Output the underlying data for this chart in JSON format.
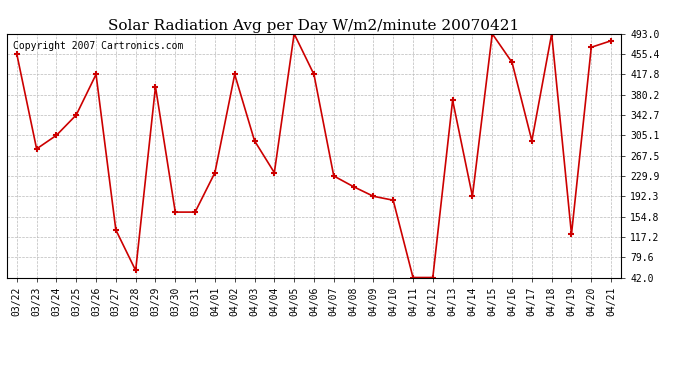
{
  "title": "Solar Radiation Avg per Day W/m2/minute 20070421",
  "copyright": "Copyright 2007 Cartronics.com",
  "labels": [
    "03/22",
    "03/23",
    "03/24",
    "03/25",
    "03/26",
    "03/27",
    "03/28",
    "03/29",
    "03/30",
    "03/31",
    "04/01",
    "04/02",
    "04/03",
    "04/04",
    "04/05",
    "04/06",
    "04/07",
    "04/08",
    "04/09",
    "04/10",
    "04/11",
    "04/12",
    "04/13",
    "04/14",
    "04/15",
    "04/16",
    "04/17",
    "04/18",
    "04/19",
    "04/20",
    "04/21"
  ],
  "values": [
    455.4,
    280.0,
    305.1,
    342.7,
    417.8,
    130.0,
    55.0,
    395.0,
    163.0,
    163.0,
    236.0,
    417.8,
    295.0,
    236.0,
    493.0,
    417.8,
    229.9,
    210.0,
    192.3,
    185.0,
    42.0,
    42.0,
    370.0,
    192.3,
    493.0,
    440.0,
    295.0,
    493.0,
    122.0,
    468.0,
    480.0
  ],
  "ylim": [
    42.0,
    493.0
  ],
  "yticks": [
    42.0,
    79.6,
    117.2,
    154.8,
    192.3,
    229.9,
    267.5,
    305.1,
    342.7,
    380.2,
    417.8,
    455.4,
    493.0
  ],
  "line_color": "#cc0000",
  "marker_color": "#cc0000",
  "bg_color": "#ffffff",
  "grid_color": "#bbbbbb",
  "title_fontsize": 11,
  "copyright_fontsize": 7,
  "tick_fontsize": 7,
  "ytick_fontsize": 7
}
